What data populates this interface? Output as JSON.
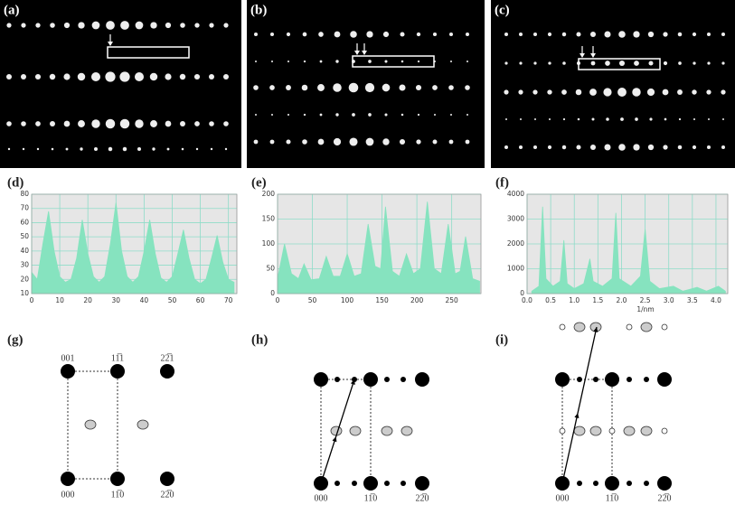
{
  "image_labels": [
    "(a)",
    "(b)",
    "(c)"
  ],
  "chart_data": [
    {
      "type": "area",
      "title": "(d)",
      "color": "#86e3bf",
      "grid": true,
      "x": [
        0,
        2,
        4,
        6,
        8,
        10,
        12,
        14,
        16,
        18,
        20,
        22,
        24,
        26,
        28,
        30,
        32,
        34,
        36,
        38,
        40,
        42,
        44,
        46,
        48,
        50,
        52,
        54,
        56,
        58,
        60,
        62,
        64,
        66,
        68,
        70,
        72
      ],
      "values": [
        25,
        20,
        45,
        68,
        40,
        22,
        18,
        20,
        35,
        62,
        38,
        22,
        18,
        22,
        45,
        74,
        40,
        22,
        18,
        22,
        40,
        62,
        38,
        21,
        18,
        22,
        38,
        55,
        35,
        20,
        17,
        20,
        35,
        51,
        32,
        20,
        18
      ],
      "xlim": [
        0,
        73
      ],
      "xticks": [
        0,
        10,
        20,
        30,
        40,
        50,
        60,
        70
      ],
      "ylim": [
        10,
        80
      ],
      "yticks": [
        10,
        20,
        30,
        40,
        50,
        60,
        70,
        80
      ]
    },
    {
      "type": "area",
      "title": "(e)",
      "color": "#86e3bf",
      "grid": true,
      "x": [
        0,
        10,
        20,
        30,
        38,
        48,
        60,
        70,
        80,
        90,
        100,
        110,
        120,
        130,
        140,
        148,
        155,
        165,
        175,
        185,
        195,
        205,
        215,
        225,
        235,
        245,
        255,
        262,
        270,
        280,
        290
      ],
      "values": [
        30,
        100,
        40,
        30,
        60,
        28,
        30,
        75,
        35,
        35,
        80,
        35,
        40,
        140,
        55,
        50,
        175,
        45,
        35,
        80,
        40,
        50,
        185,
        50,
        40,
        140,
        40,
        45,
        115,
        30,
        25
      ],
      "xlim": [
        0,
        292
      ],
      "xticks": [
        0,
        50,
        100,
        150,
        200,
        250
      ],
      "ylim": [
        0,
        200
      ],
      "yticks": [
        0,
        50,
        100,
        150,
        200
      ]
    },
    {
      "type": "area",
      "title": "(f)",
      "color": "#86e3bf",
      "grid": true,
      "xlabel": "1/nm",
      "x": [
        0.1,
        0.25,
        0.33,
        0.4,
        0.55,
        0.7,
        0.78,
        0.85,
        1.0,
        1.2,
        1.33,
        1.4,
        1.6,
        1.8,
        1.88,
        1.95,
        2.2,
        2.4,
        2.5,
        2.6,
        2.8,
        3.1,
        3.3,
        3.6,
        3.8,
        4.05,
        4.2
      ],
      "values": [
        100,
        300,
        3500,
        600,
        300,
        500,
        2150,
        400,
        200,
        400,
        1400,
        500,
        300,
        600,
        3250,
        600,
        300,
        700,
        2600,
        500,
        200,
        300,
        100,
        250,
        100,
        300,
        100
      ],
      "xlim": [
        0,
        4.25
      ],
      "xticks": [
        {
          "value": 0,
          "label": "0.0"
        },
        0.5,
        {
          "value": 1,
          "label": "1.0"
        },
        1.5,
        {
          "value": 2,
          "label": "2.0"
        },
        2.5,
        {
          "value": 3,
          "label": "3.0"
        },
        3.5,
        {
          "value": 4,
          "label": "4.0"
        }
      ],
      "ylim": [
        0,
        4000
      ],
      "yticks": [
        0,
        1000,
        2000,
        3000,
        4000
      ]
    }
  ],
  "schematics": [
    {
      "label": "(g)",
      "top_labels": [
        "001",
        "11̅1",
        "22̅1"
      ],
      "bottom_labels": [
        "000",
        "11̅0",
        "22̅0"
      ]
    },
    {
      "label": "(h)",
      "bottom_labels": [
        "000",
        "11̅0",
        "22̅0"
      ]
    },
    {
      "label": "(i)",
      "bottom_labels": [
        "000",
        "11̅0",
        "22̅0"
      ]
    }
  ]
}
